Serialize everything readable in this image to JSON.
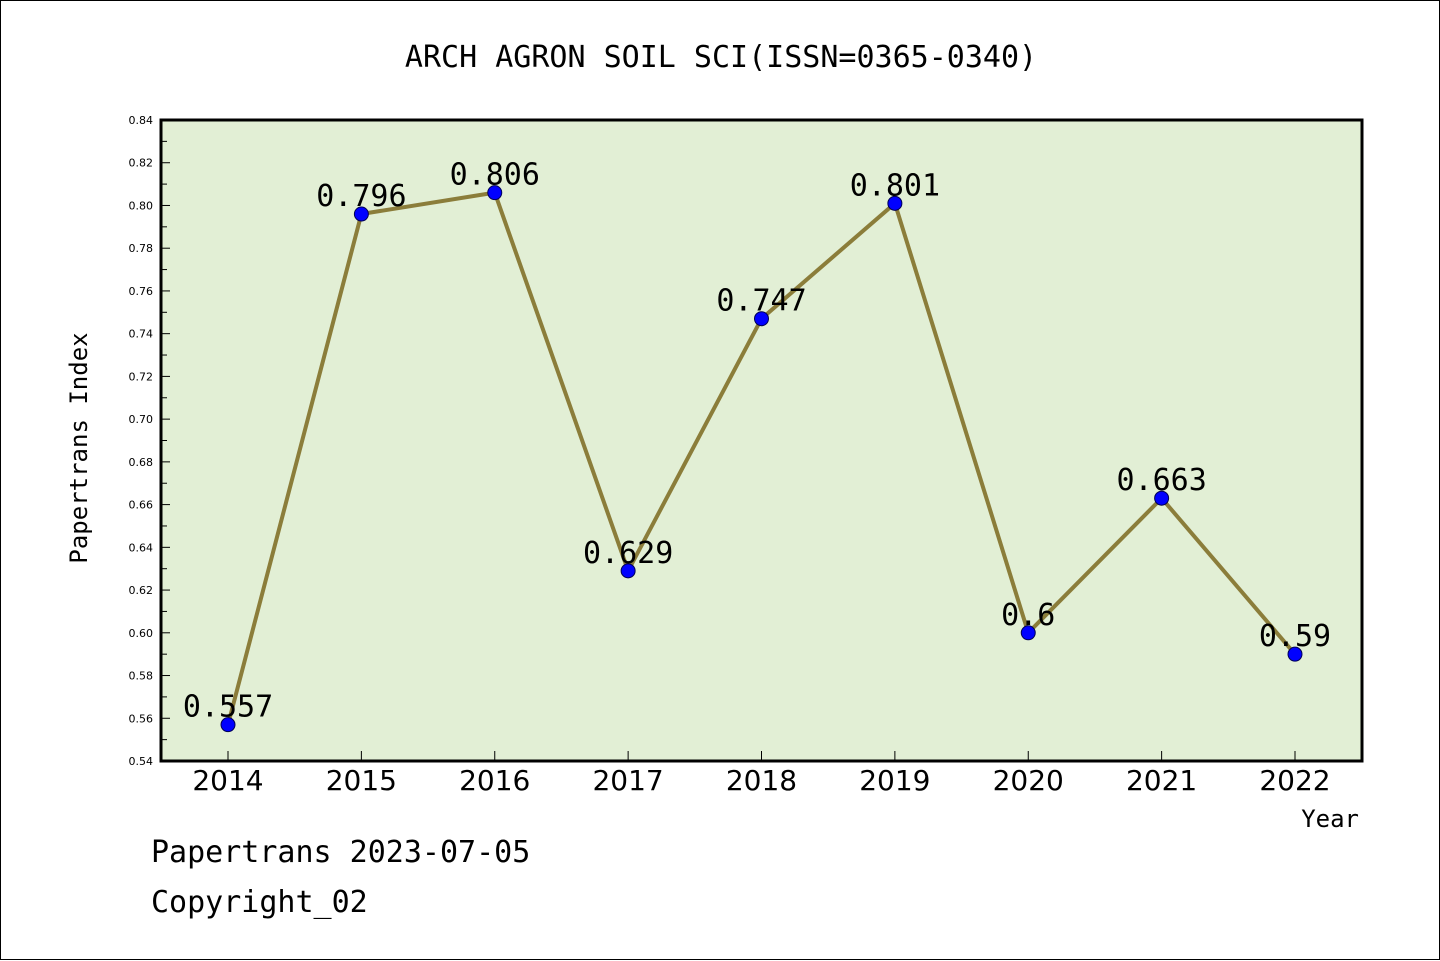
{
  "chart_data": {
    "type": "line",
    "title": "ARCH AGRON SOIL SCI(ISSN=0365-0340)",
    "xlabel": "Year",
    "ylabel": "Papertrans Index",
    "categories": [
      "2014",
      "2015",
      "2016",
      "2017",
      "2018",
      "2019",
      "2020",
      "2021",
      "2022"
    ],
    "series": [
      {
        "values": [
          0.557,
          0.796,
          0.806,
          0.629,
          0.747,
          0.801,
          0.6,
          0.663,
          0.59
        ],
        "labels": [
          "0.557",
          "0.796",
          "0.806",
          "0.629",
          "0.747",
          "0.801",
          "0.6",
          "0.663",
          "0.59"
        ],
        "line_color": "#8b7d3a",
        "marker_color": "#0000ff"
      }
    ],
    "ylim": [
      0.54,
      0.84
    ],
    "yticks": [
      "0.54",
      "0.56",
      "0.58",
      "0.60",
      "0.62",
      "0.64",
      "0.66",
      "0.68",
      "0.70",
      "0.72",
      "0.74",
      "0.76",
      "0.78",
      "0.80",
      "0.82",
      "0.84"
    ],
    "plot_background": "#e2efd5",
    "grid": false,
    "legend": "none"
  },
  "footer": {
    "line1": "Papertrans 2023-07-05",
    "line2": "Copyright_02"
  }
}
